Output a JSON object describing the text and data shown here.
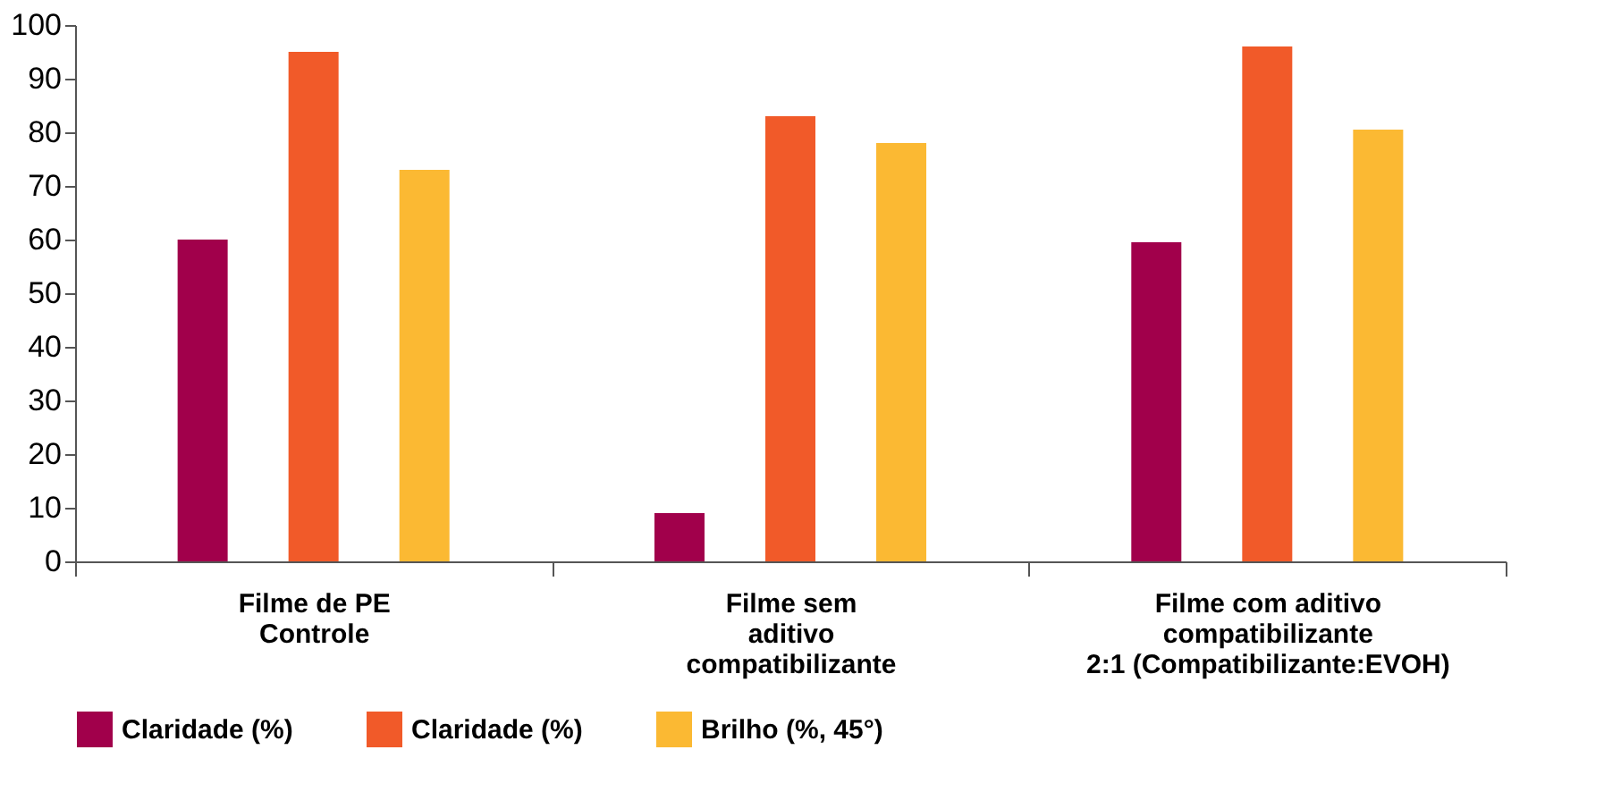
{
  "chart_data": {
    "type": "bar",
    "categories": [
      "Filme de PE\nControle",
      "Filme sem\naditivo\ncompatibilizante",
      "Filme com aditivo\ncompatibilizante\n2:1 (Compatibilizante:EVOH)"
    ],
    "series": [
      {
        "name": "Claridade (%)",
        "color": "#a1004b",
        "values": [
          60,
          9,
          59.5
        ]
      },
      {
        "name": "Claridade (%)",
        "color": "#f15a29",
        "values": [
          95,
          83,
          96
        ]
      },
      {
        "name": "Brilho (%, 45°)",
        "color": "#fbb933",
        "values": [
          73,
          78,
          80.5
        ]
      }
    ],
    "ylim": [
      0,
      100
    ],
    "yticks": [
      0,
      10,
      20,
      30,
      40,
      50,
      60,
      70,
      80,
      90,
      100
    ],
    "grid": false,
    "legend": "bottom"
  }
}
